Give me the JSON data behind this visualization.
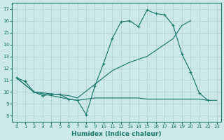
{
  "xlabel": "Humidex (Indice chaleur)",
  "xlim": [
    -0.5,
    23.5
  ],
  "ylim": [
    7.5,
    17.5
  ],
  "yticks": [
    8,
    9,
    10,
    11,
    12,
    13,
    14,
    15,
    16,
    17
  ],
  "xticks": [
    0,
    1,
    2,
    3,
    4,
    5,
    6,
    7,
    8,
    9,
    10,
    11,
    12,
    13,
    14,
    15,
    16,
    17,
    18,
    19,
    20,
    21,
    22,
    23
  ],
  "bg_color": "#cde8e8",
  "line_color": "#1a7a6e",
  "grid_color": "#b0cecc",
  "line1_x": [
    0,
    1,
    2,
    3,
    4,
    5,
    6,
    7,
    8,
    9,
    10,
    11,
    12,
    13,
    14,
    15,
    16,
    17,
    18,
    19,
    20,
    21,
    22
  ],
  "line1_y": [
    11.2,
    10.9,
    10.0,
    9.7,
    9.8,
    9.8,
    9.4,
    9.3,
    8.1,
    10.5,
    12.4,
    14.5,
    15.9,
    16.0,
    15.5,
    16.9,
    16.6,
    16.5,
    15.6,
    13.2,
    11.7,
    9.9,
    9.3
  ],
  "line2_x": [
    0,
    2,
    6,
    7,
    9,
    10,
    11,
    12,
    13,
    14,
    15,
    16,
    17,
    18,
    19,
    20,
    21,
    22,
    23
  ],
  "line2_y": [
    11.2,
    10.0,
    9.4,
    9.3,
    9.5,
    9.5,
    9.5,
    9.5,
    9.5,
    9.5,
    9.4,
    9.4,
    9.4,
    9.4,
    9.4,
    9.4,
    9.4,
    9.3,
    9.3
  ],
  "line3_x": [
    0,
    2,
    6,
    7,
    11,
    13,
    15,
    17,
    18,
    19,
    20
  ],
  "line3_y": [
    11.2,
    10.0,
    9.7,
    9.5,
    11.8,
    12.5,
    13.0,
    14.0,
    14.5,
    15.6,
    16.0
  ]
}
